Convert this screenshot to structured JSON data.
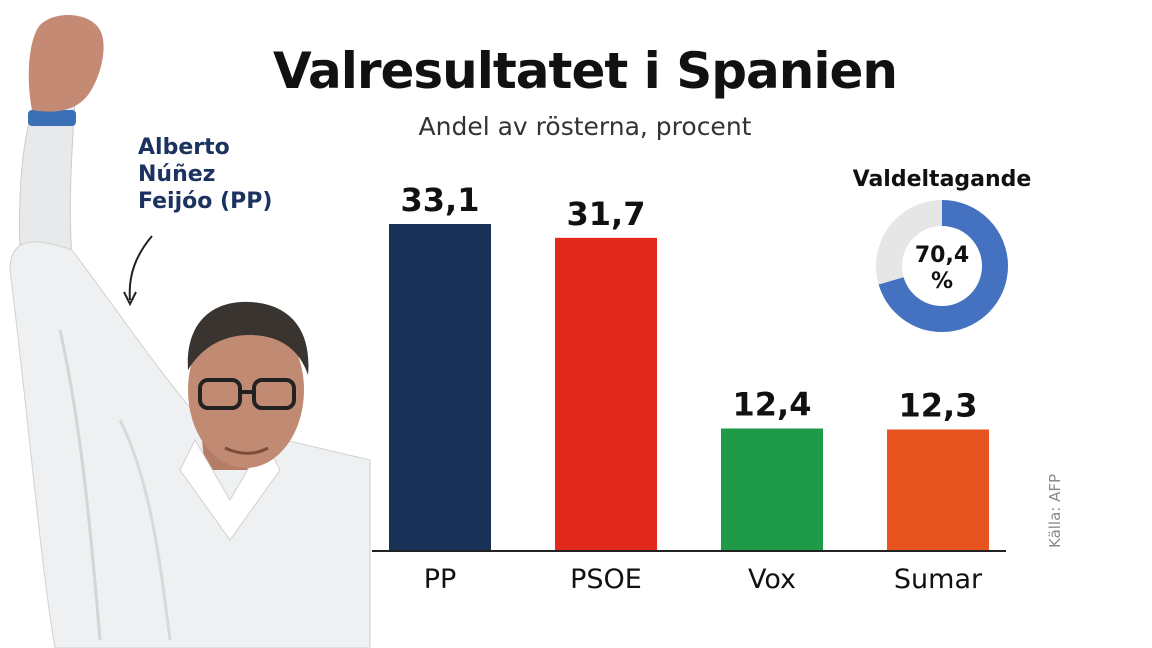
{
  "header": {
    "title": "Valresultatet i Spanien",
    "subtitle": "Andel av rösterna, procent"
  },
  "photo_caption": {
    "lines": [
      "Alberto",
      "Núñez",
      "Feijóo (PP)"
    ]
  },
  "source": "Källa: AFP",
  "colors": {
    "axis": "#222222",
    "donut_rest": "#e6e6e6",
    "caption": "#1c3360"
  },
  "chart_data": [
    {
      "type": "bar",
      "categories": [
        "PP",
        "PSOE",
        "Vox",
        "Sumar"
      ],
      "values": [
        33.1,
        31.7,
        12.4,
        12.3
      ],
      "value_labels": [
        "33,1",
        "31,7",
        "12,4",
        "12,3"
      ],
      "colors": [
        "#1a3157",
        "#e1291d",
        "#1f9a48",
        "#e8541f"
      ],
      "title": "Valresultatet i Spanien",
      "subtitle": "Andel av rösterna, procent",
      "ylim": [
        0,
        33.1
      ],
      "grid": false
    },
    {
      "type": "pie",
      "title": "Valdeltagande",
      "value": 70.4,
      "value_label": "70,4",
      "unit": "%",
      "color": "#4472c0",
      "rest_color": "#e6e6e6"
    }
  ]
}
